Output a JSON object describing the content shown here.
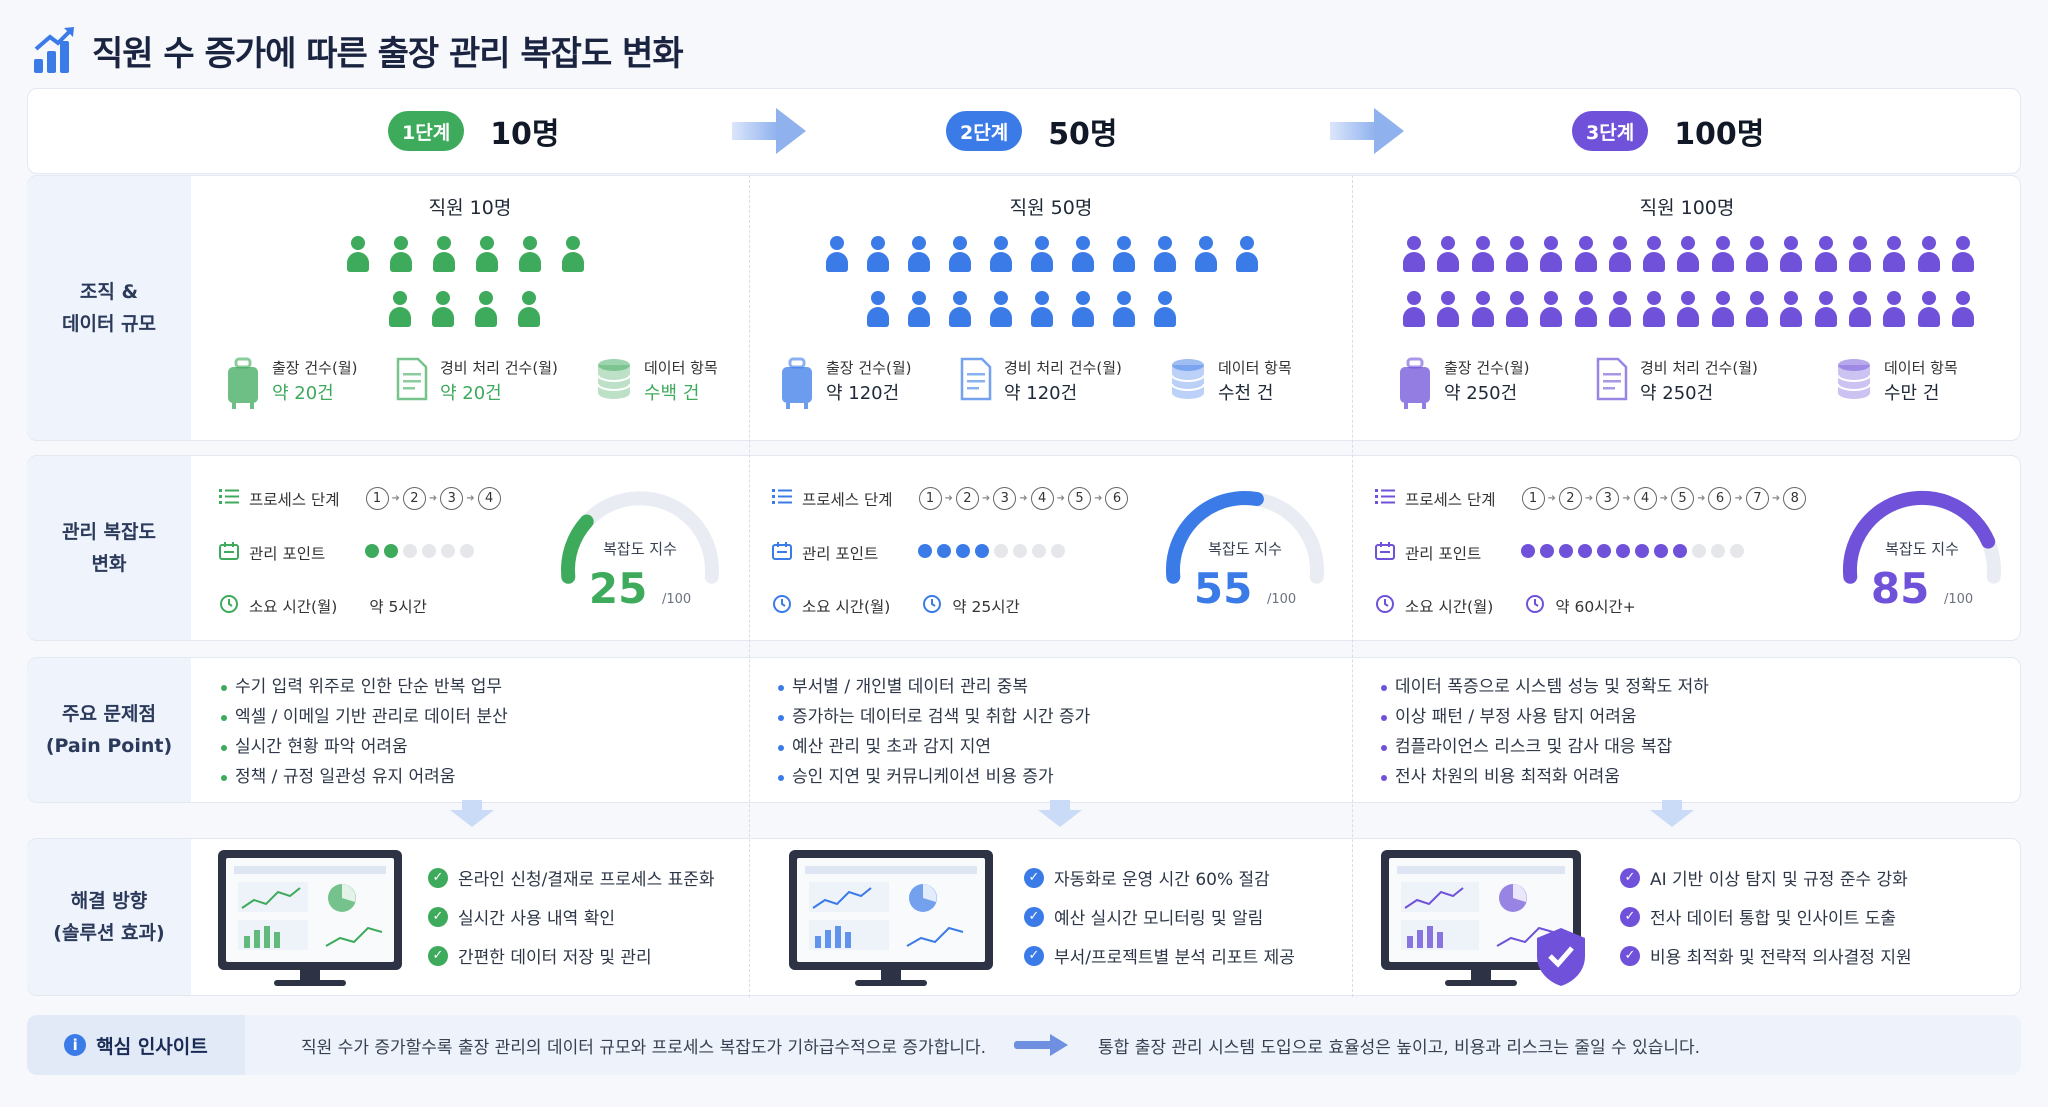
{
  "title": "직원 수 증가에 따른 출장 관리 복잡도 변화",
  "row_labels": {
    "scale": "조직 &\n데이터 규모",
    "complexity": "관리 복잡도\n변화",
    "pain": "주요 문제점\n(Pain Point)",
    "solution": "해결 방향\n(솔루션 효과)"
  },
  "stages": [
    {
      "badge": "1단계",
      "count": "10명",
      "color": "#3eaa5c",
      "head": "직원 10명",
      "stats": [
        {
          "icon": "suitcase-icon",
          "label": "출장 건수(월)",
          "value": "약 20건"
        },
        {
          "icon": "document-icon",
          "label": "경비 처리 건수(월)",
          "value": "약 20건"
        },
        {
          "icon": "database-icon",
          "label": "데이터 항목",
          "value": "수백 건"
        }
      ],
      "process_label": "프로세스 단계",
      "steps": [
        "1",
        "2",
        "3",
        "4"
      ],
      "points_label": "관리 포인트",
      "points_on": 2,
      "points_total": 6,
      "time_label": "소요 시간(월)",
      "time_value": "약 5시간",
      "gauge_label": "복잡도 지수",
      "gauge": 25,
      "gauge_max": "/100",
      "pains": [
        "수기 입력 위주로 인한 단순 반복 업무",
        "엑셀 / 이메일 기반 관리로 데이터 분산",
        "실시간 현황 파악 어려움",
        "정책 / 규정 일관성 유지 어려움"
      ],
      "solutions": [
        "온라인 신청/결재로 프로세스 표준화",
        "실시간 사용 내역 확인",
        "간편한 데이터 저장 및 관리"
      ]
    },
    {
      "badge": "2단계",
      "count": "50명",
      "color": "#3b7be8",
      "head": "직원 50명",
      "stats": [
        {
          "icon": "suitcase-icon",
          "label": "출장 건수(월)",
          "value": "약 120건"
        },
        {
          "icon": "document-icon",
          "label": "경비 처리 건수(월)",
          "value": "약 120건"
        },
        {
          "icon": "database-icon",
          "label": "데이터 항목",
          "value": "수천 건"
        }
      ],
      "process_label": "프로세스 단계",
      "steps": [
        "1",
        "2",
        "3",
        "4",
        "5",
        "6"
      ],
      "points_label": "관리 포인트",
      "points_on": 4,
      "points_total": 8,
      "time_label": "소요 시간(월)",
      "time_value": "약 25시간",
      "gauge_label": "복잡도 지수",
      "gauge": 55,
      "gauge_max": "/100",
      "pains": [
        "부서별 / 개인별 데이터 관리 중복",
        "증가하는 데이터로 검색 및 취합 시간 증가",
        "예산 관리 및 초과 감지 지연",
        "승인 지연 및 커뮤니케이션 비용 증가"
      ],
      "solutions": [
        "자동화로 운영 시간 60% 절감",
        "예산 실시간 모니터링 및 알림",
        "부서/프로젝트별 분석 리포트 제공"
      ]
    },
    {
      "badge": "3단계",
      "count": "100명",
      "color": "#6f52d9",
      "head": "직원 100명",
      "stats": [
        {
          "icon": "suitcase-icon",
          "label": "출장 건수(월)",
          "value": "약 250건"
        },
        {
          "icon": "document-icon",
          "label": "경비 처리 건수(월)",
          "value": "약 250건"
        },
        {
          "icon": "database-icon",
          "label": "데이터 항목",
          "value": "수만 건"
        }
      ],
      "process_label": "프로세스 단계",
      "steps": [
        "1",
        "2",
        "3",
        "4",
        "5",
        "6",
        "7",
        "8"
      ],
      "points_label": "관리 포인트",
      "points_on": 9,
      "points_total": 12,
      "time_label": "소요 시간(월)",
      "time_value": "약 60시간+",
      "gauge_label": "복잡도 지수",
      "gauge": 85,
      "gauge_max": "/100",
      "pains": [
        "데이터 폭증으로 시스템 성능 및 정확도 저하",
        "이상 패턴 / 부정 사용 탐지 어려움",
        "컴플라이언스 리스크 및 감사 대응 복잡",
        "전사 차원의 비용 최적화 어려움"
      ],
      "solutions": [
        "AI 기반 이상 탐지 및 규정 준수 강화",
        "전사 데이터 통합 및 인사이트 도출",
        "비용 최적화 및 전략적 의사결정 지원"
      ]
    }
  ],
  "insight": {
    "label": "핵심 인사이트",
    "text1": "직원 수가 증가할수록 출장 관리의 데이터 규모와 프로세스 복잡도가 기하급수적으로 증가합니다.",
    "text2": "통합 출장 관리 시스템 도입으로 효율성은 높이고, 비용과 리스크는 줄일 수 있습니다."
  }
}
